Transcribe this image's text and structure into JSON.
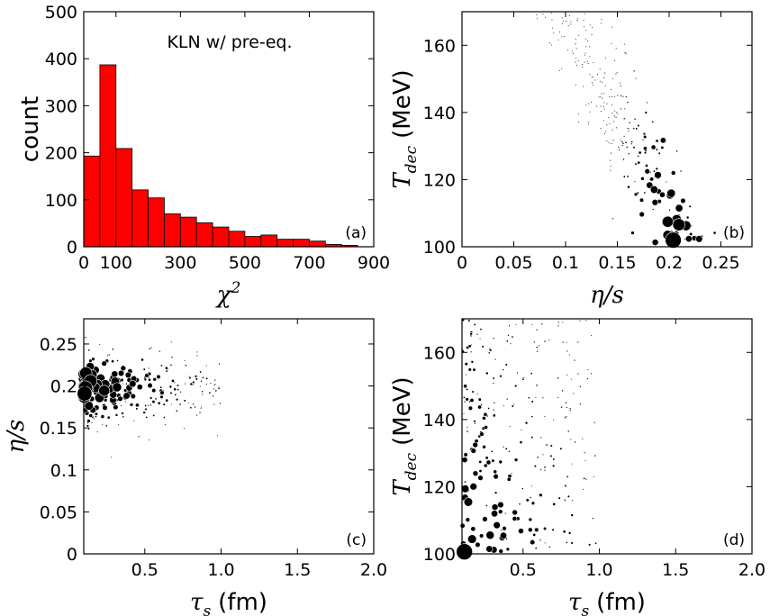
{
  "chart_data": [
    {
      "id": "a",
      "type": "bar",
      "panel_tag": "(a)",
      "annotation": "KLN w/ pre-eq.",
      "xlabel": "χ",
      "xlabel_sup": "2",
      "ylabel": "count",
      "xlim": [
        0,
        900
      ],
      "ylim": [
        0,
        500
      ],
      "xticks": [
        0,
        100,
        300,
        500,
        700,
        900
      ],
      "yticks": [
        0,
        100,
        200,
        300,
        400,
        500
      ],
      "bar_color": "#ff0000",
      "bin_edges": [
        0,
        50,
        100,
        150,
        200,
        250,
        300,
        350,
        400,
        450,
        500,
        550,
        600,
        650,
        700,
        750,
        800,
        850
      ],
      "values": [
        193,
        387,
        209,
        121,
        104,
        70,
        63,
        51,
        42,
        33,
        22,
        25,
        16,
        16,
        12,
        5,
        3
      ]
    },
    {
      "id": "b",
      "type": "scatter",
      "panel_tag": "(b)",
      "xlabel": "η/s",
      "ylabel": "T",
      "ylabel_sub": "dec",
      "ylabel_unit": "(MeV)",
      "xlim": [
        0,
        0.28
      ],
      "ylim": [
        100,
        170
      ],
      "xticks": [
        0,
        0.05,
        0.1,
        0.15,
        0.2,
        0.25
      ],
      "xtick_labels": [
        "0",
        "0.05",
        "0.1",
        "0.15",
        "0.2",
        "0.25"
      ],
      "yticks": [
        100,
        120,
        140,
        160
      ],
      "point_color": "#000000",
      "seed": 11
    },
    {
      "id": "c",
      "type": "scatter",
      "panel_tag": "(c)",
      "xlabel": "τ",
      "xlabel_sub": "s",
      "xlabel_unit": "(fm)",
      "ylabel": "η/s",
      "xlim": [
        0.1,
        2.0
      ],
      "ylim": [
        0,
        0.28
      ],
      "xticks": [
        0.5,
        1.0,
        1.5,
        2.0
      ],
      "xtick_labels": [
        "0.5",
        "1.0",
        "1.5",
        "2.0"
      ],
      "yticks": [
        0,
        0.05,
        0.1,
        0.15,
        0.2,
        0.25
      ],
      "ytick_labels": [
        "0",
        "0.05",
        "0.1",
        "0.15",
        "0.2",
        "0.25"
      ],
      "point_color": "#000000",
      "seed": 23
    },
    {
      "id": "d",
      "type": "scatter",
      "panel_tag": "(d)",
      "xlabel": "τ",
      "xlabel_sub": "s",
      "xlabel_unit": "(fm)",
      "ylabel": "T",
      "ylabel_sub": "dec",
      "ylabel_unit": "(MeV)",
      "xlim": [
        0.1,
        2.0
      ],
      "ylim": [
        100,
        170
      ],
      "xticks": [
        0.5,
        1.0,
        1.5,
        2.0
      ],
      "xtick_labels": [
        "0.5",
        "1.0",
        "1.5",
        "2.0"
      ],
      "yticks": [
        100,
        120,
        140,
        160
      ],
      "point_color": "#000000",
      "seed": 37
    }
  ]
}
